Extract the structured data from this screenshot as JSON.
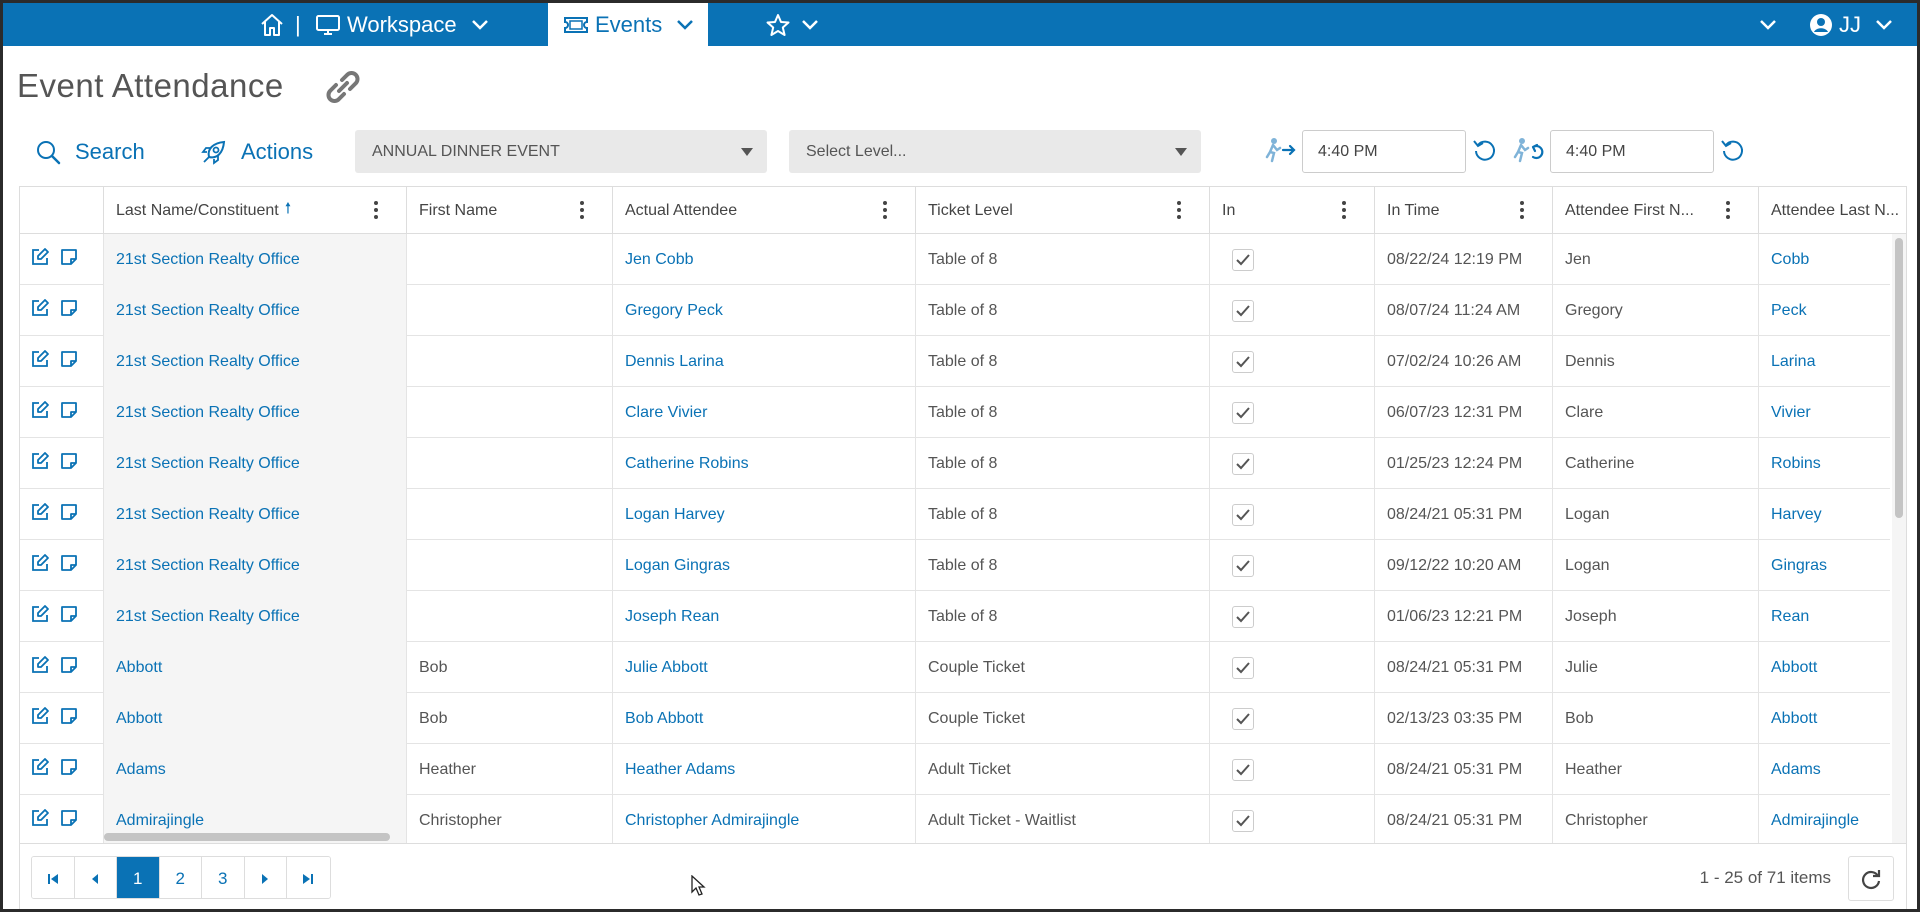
{
  "topbar": {
    "workspace_label": "Workspace",
    "separator": "|",
    "events_label": "Events",
    "user_initials": "JJ"
  },
  "header": {
    "title": "Event Attendance"
  },
  "toolbar": {
    "search_label": "Search",
    "actions_label": "Actions",
    "event_select": "ANNUAL DINNER EVENT",
    "level_select": "Select Level...",
    "check_in_time": "4:40 PM",
    "check_out_time": "4:40 PM"
  },
  "grid": {
    "columns": [
      "Last Name/Constituent",
      "First Name",
      "Actual Attendee",
      "Ticket Level",
      "In",
      "In Time",
      "Attendee First N...",
      "Attendee Last N..."
    ],
    "rows": [
      [
        "21st Section Realty Office",
        "",
        "Jen Cobb",
        "Table of 8",
        "true",
        "08/22/24 12:19 PM",
        "Jen",
        "Cobb"
      ],
      [
        "21st Section Realty Office",
        "",
        "Gregory Peck",
        "Table of 8",
        "true",
        "08/07/24 11:24 AM",
        "Gregory",
        "Peck"
      ],
      [
        "21st Section Realty Office",
        "",
        "Dennis Larina",
        "Table of 8",
        "true",
        "07/02/24 10:26 AM",
        "Dennis",
        "Larina"
      ],
      [
        "21st Section Realty Office",
        "",
        "Clare Vivier",
        "Table of 8",
        "true",
        "06/07/23 12:31 PM",
        "Clare",
        "Vivier"
      ],
      [
        "21st Section Realty Office",
        "",
        "Catherine Robins",
        "Table of 8",
        "true",
        "01/25/23 12:24 PM",
        "Catherine",
        "Robins"
      ],
      [
        "21st Section Realty Office",
        "",
        "Logan Harvey",
        "Table of 8",
        "true",
        "08/24/21 05:31 PM",
        "Logan",
        "Harvey"
      ],
      [
        "21st Section Realty Office",
        "",
        "Logan Gingras",
        "Table of 8",
        "true",
        "09/12/22 10:20 AM",
        "Logan",
        "Gingras"
      ],
      [
        "21st Section Realty Office",
        "",
        "Joseph Rean",
        "Table of 8",
        "true",
        "01/06/23 12:21 PM",
        "Joseph",
        "Rean"
      ],
      [
        "Abbott",
        "Bob",
        "Julie Abbott",
        "Couple Ticket",
        "true",
        "08/24/21 05:31 PM",
        "Julie",
        "Abbott"
      ],
      [
        "Abbott",
        "Bob",
        "Bob Abbott",
        "Couple Ticket",
        "true",
        "02/13/23 03:35 PM",
        "Bob",
        "Abbott"
      ],
      [
        "Adams",
        "Heather",
        "Heather Adams",
        "Adult Ticket",
        "true",
        "08/24/21 05:31 PM",
        "Heather",
        "Adams"
      ],
      [
        "Admirajingle",
        "Christopher",
        "Christopher Admirajingle",
        "Adult Ticket - Waitlist",
        "true",
        "08/24/21 05:31 PM",
        "Christopher",
        "Admirajingle"
      ]
    ]
  },
  "pager": {
    "pages": [
      "1",
      "2",
      "3"
    ],
    "current_page": "1",
    "info": "1 - 25 of 71 items"
  },
  "colors": {
    "brand": "#0a72b5",
    "border": "#dddddd"
  },
  "icons": [
    "home-icon",
    "monitor-icon",
    "ticket-icon",
    "star-icon",
    "chevron-down-icon",
    "user-circle-icon",
    "link-icon",
    "search-icon",
    "rocket-icon",
    "walk-in-icon",
    "walk-out-icon",
    "reset-icon",
    "edit-icon",
    "note-icon",
    "checkbox-icon",
    "refresh-icon"
  ]
}
